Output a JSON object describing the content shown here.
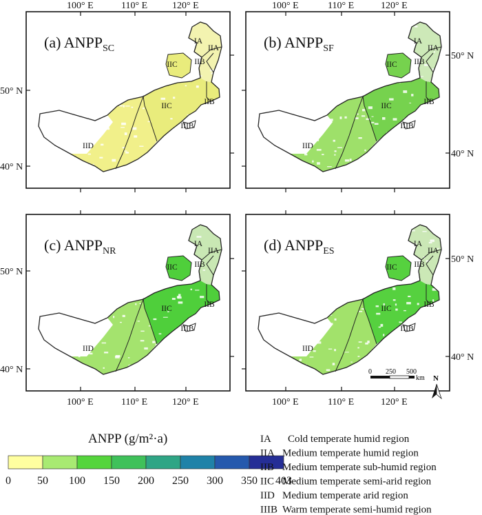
{
  "panels": [
    {
      "id": "a",
      "label": "(a) ANPP",
      "sub": "SC",
      "fill": "#f1f08a",
      "east_fill": "#e9ec7c",
      "north_fill": "#f3f3b0"
    },
    {
      "id": "b",
      "label": "(b) ANPP",
      "sub": "SF",
      "fill": "#9ee06a",
      "east_fill": "#76d24e",
      "north_fill": "#cde9b8"
    },
    {
      "id": "c",
      "label": "(c) ANPP",
      "sub": "NR",
      "fill": "#a4e36e",
      "east_fill": "#4fcf3b",
      "north_fill": "#c9e8b4"
    },
    {
      "id": "d",
      "label": "(d) ANPP",
      "sub": "ES",
      "fill": "#a2e26b",
      "east_fill": "#56d13f",
      "north_fill": "#cbe8b6"
    }
  ],
  "region_labels": [
    "IA",
    "IIA",
    "IIB",
    "IIC",
    "IIB",
    "IIIB",
    "IIC",
    "IID"
  ],
  "axes": {
    "top_x": [
      "100° E",
      "110° E",
      "120° E"
    ],
    "bottom_x": [
      "100° E",
      "110° E",
      "120° E"
    ],
    "left_y_top": [
      "50° N",
      "40° N"
    ],
    "left_y_bottom": [
      "50° N",
      "40° N"
    ],
    "right_y_top": [
      "50° N",
      "40° N"
    ],
    "right_y_bottom": [
      "50° N",
      "40° N"
    ]
  },
  "scale_bar": {
    "labels": [
      "0",
      "250",
      "500"
    ],
    "unit": "km"
  },
  "north_arrow": {
    "label": "N"
  },
  "legend": {
    "title": "ANPP (g/m²·a)",
    "ticks": [
      "0",
      "50",
      "100",
      "150",
      "200",
      "250",
      "300",
      "350",
      "403"
    ],
    "colors": [
      "#ffffa0",
      "#a8ea72",
      "#55d53c",
      "#3fc15a",
      "#2fa585",
      "#1f82a8",
      "#2559ad",
      "#252e96"
    ]
  },
  "zones": [
    {
      "code": "IA",
      "name": "Cold temperate humid region"
    },
    {
      "code": "IIA",
      "name": "Medium temperate humid region"
    },
    {
      "code": "IIB",
      "name": "Medium temperate sub-humid region"
    },
    {
      "code": "IIC",
      "name": "Medium temperate semi-arid region"
    },
    {
      "code": "IID",
      "name": "Medium temperate arid region"
    },
    {
      "code": "IIIB",
      "name": "Warm temperate semi-humid region"
    }
  ]
}
